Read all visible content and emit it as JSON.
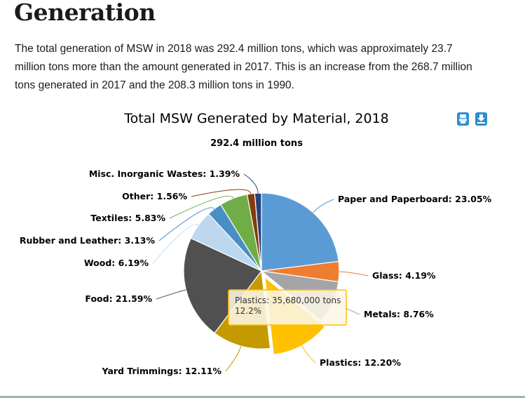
{
  "section": {
    "heading": "Generation",
    "paragraph_lines": [
      "The total generation of MSW in 2018 was 292.4 million tons, which was approximately 23.7",
      "million tons more than the amount generated in 2017.  This is an increase from the 268.7 million",
      "tons generated in 2017 and the 208.3 million tons in 1990."
    ]
  },
  "export_buttons": [
    {
      "icon": "print-icon",
      "label": "Print chart"
    },
    {
      "icon": "download-icon",
      "label": "Download chart"
    }
  ],
  "tooltip": {
    "line1": "Plastics: 35,680,000 tons",
    "line2": "12.2%"
  },
  "chart_data": {
    "type": "pie",
    "title": "Total MSW Generated by Material, 2018",
    "subtitle": "292.4 million tons",
    "unit": "%",
    "start": "top",
    "direction": "clockwise",
    "highlighted": "Plastics",
    "slices": [
      {
        "name": "Paper and Paperboard",
        "value": 23.05,
        "label": "Paper and Paperboard: 23.05%",
        "color": "#5b9bd5"
      },
      {
        "name": "Glass",
        "value": 4.19,
        "label": "Glass: 4.19%",
        "color": "#ed7d31"
      },
      {
        "name": "Metals",
        "value": 8.76,
        "label": "Metals: 8.76%",
        "color": "#a5a5a5"
      },
      {
        "name": "Plastics",
        "value": 12.2,
        "label": "Plastics: 12.20%",
        "color": "#ffc000"
      },
      {
        "name": "Yard Trimmings",
        "value": 12.11,
        "label": "Yard Trimmings: 12.11%",
        "color": "#c49a00"
      },
      {
        "name": "Food",
        "value": 21.59,
        "label": "Food: 21.59%",
        "color": "#505050"
      },
      {
        "name": "Wood",
        "value": 6.19,
        "label": "Wood: 6.19%",
        "color": "#bdd7ee"
      },
      {
        "name": "Rubber and Leather",
        "value": 3.13,
        "label": "Rubber and Leather: 3.13%",
        "color": "#4a8ec6"
      },
      {
        "name": "Textiles",
        "value": 5.83,
        "label": "Textiles: 5.83%",
        "color": "#70ad47"
      },
      {
        "name": "Other",
        "value": 1.56,
        "label": "Other: 1.56%",
        "color": "#843c0c"
      },
      {
        "name": "Misc. Inorganic Wastes",
        "value": 1.39,
        "label": "Misc. Inorganic Wastes: 1.39%",
        "color": "#264478"
      }
    ]
  }
}
